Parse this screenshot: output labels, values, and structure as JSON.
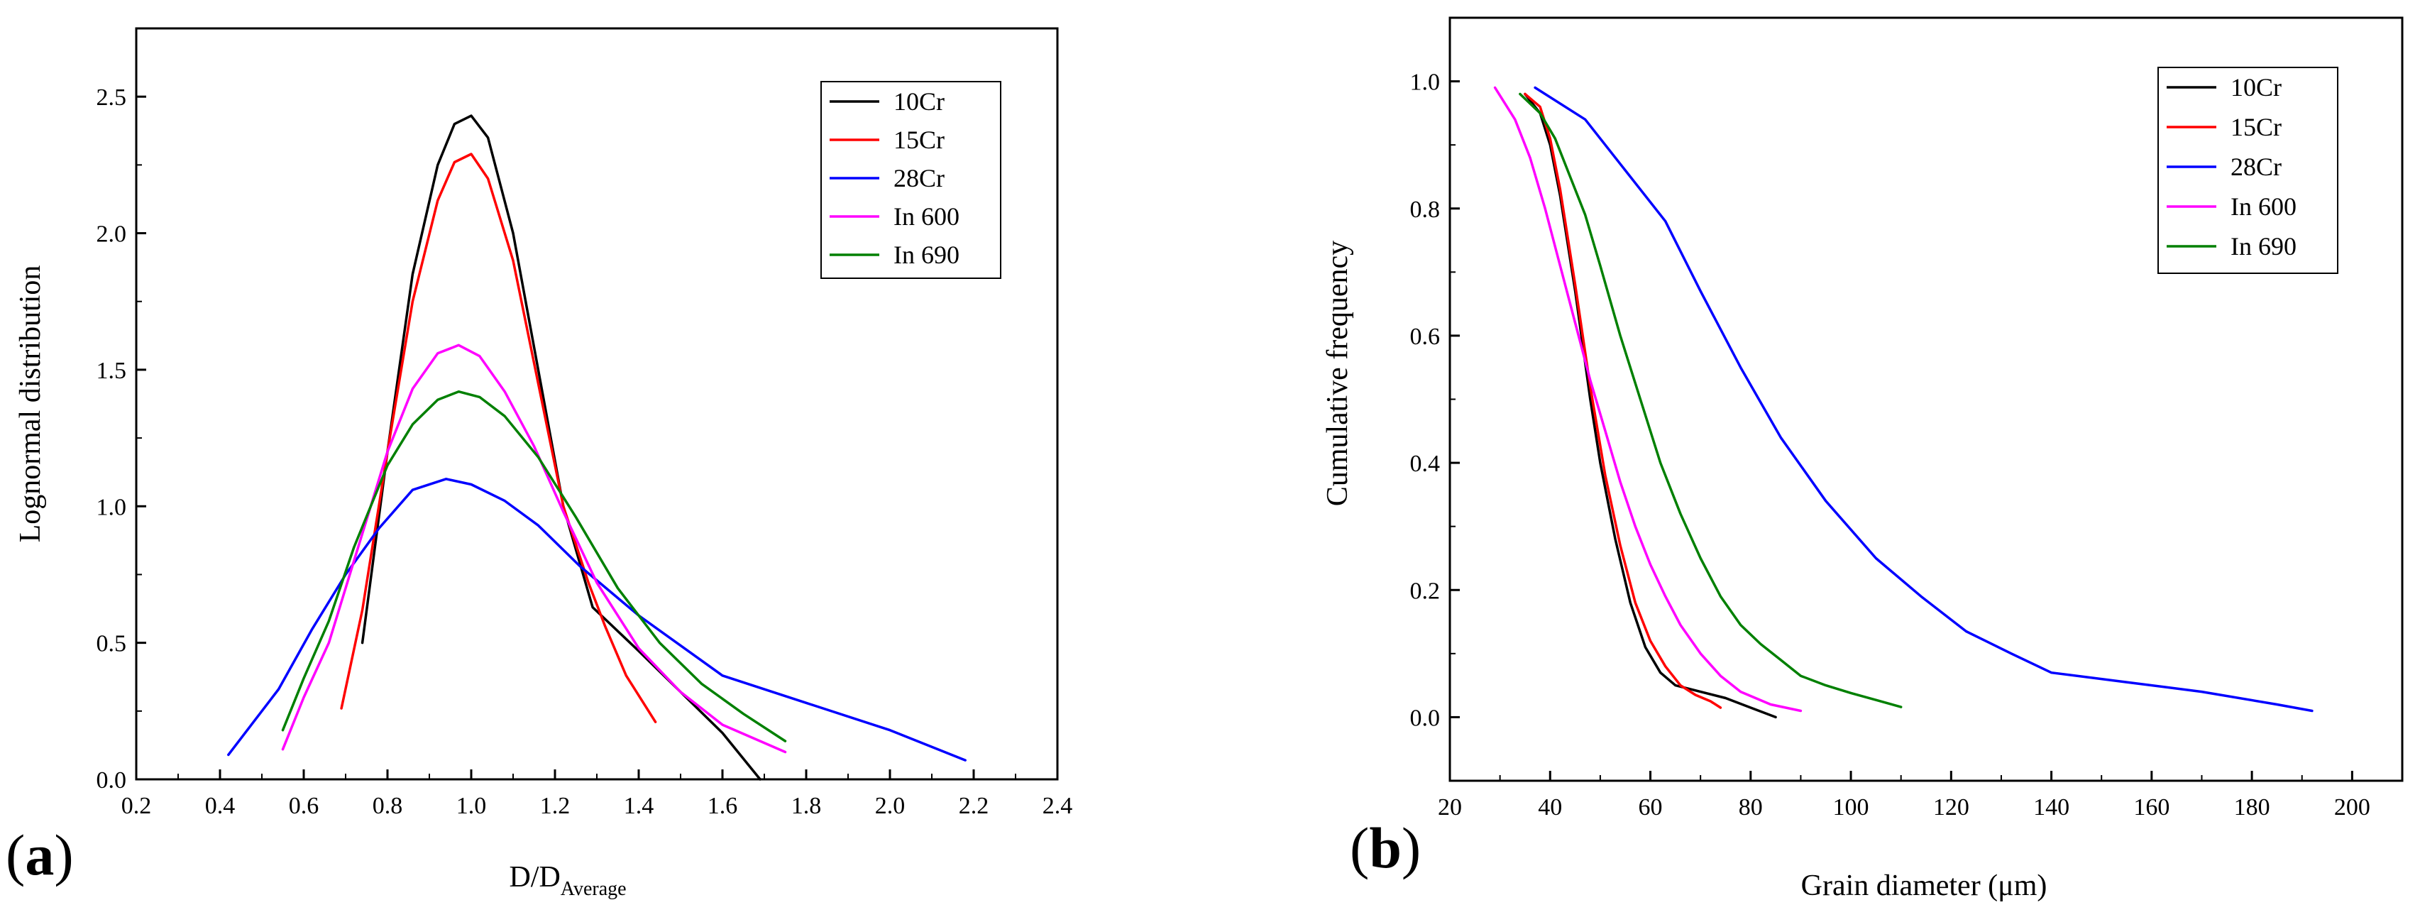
{
  "chart_data": [
    {
      "type": "line",
      "panel_label": "(a)",
      "xlabel": "D/D",
      "xlabel_sub": "Average",
      "ylabel": "Lognormal distribution",
      "xlim": [
        0.2,
        2.4
      ],
      "ylim": [
        0.0,
        2.75
      ],
      "xticks": [
        "0.2",
        "0.4",
        "0.6",
        "0.8",
        "1.0",
        "1.2",
        "1.4",
        "1.6",
        "1.8",
        "2.0",
        "2.2",
        "2.4"
      ],
      "yticks": [
        "0.0",
        "0.5",
        "1.0",
        "1.5",
        "2.0",
        "2.5"
      ],
      "legend_position": "top-right",
      "series": [
        {
          "name": "10Cr",
          "color": "#000000",
          "x": [
            0.74,
            0.8,
            0.86,
            0.92,
            0.96,
            1.0,
            1.04,
            1.1,
            1.16,
            1.22,
            1.29,
            1.4,
            1.5,
            1.6,
            1.69
          ],
          "y": [
            0.5,
            1.2,
            1.85,
            2.25,
            2.4,
            2.43,
            2.35,
            2.0,
            1.5,
            1.0,
            0.63,
            0.47,
            0.32,
            0.17,
            0.0
          ]
        },
        {
          "name": "15Cr",
          "color": "#ff0000",
          "x": [
            0.69,
            0.74,
            0.8,
            0.86,
            0.92,
            0.96,
            1.0,
            1.04,
            1.1,
            1.16,
            1.22,
            1.28,
            1.32,
            1.37,
            1.44
          ],
          "y": [
            0.26,
            0.62,
            1.2,
            1.75,
            2.12,
            2.26,
            2.29,
            2.2,
            1.9,
            1.45,
            1.0,
            0.72,
            0.56,
            0.38,
            0.21
          ]
        },
        {
          "name": "28Cr",
          "color": "#0000ff",
          "x": [
            0.42,
            0.54,
            0.62,
            0.7,
            0.78,
            0.86,
            0.94,
            1.0,
            1.08,
            1.16,
            1.26,
            1.4,
            1.6,
            1.8,
            2.0,
            2.18
          ],
          "y": [
            0.09,
            0.33,
            0.55,
            0.75,
            0.92,
            1.06,
            1.1,
            1.08,
            1.02,
            0.93,
            0.78,
            0.6,
            0.38,
            0.28,
            0.18,
            0.07
          ]
        },
        {
          "name": "In 600",
          "color": "#ff00ff",
          "x": [
            0.55,
            0.6,
            0.66,
            0.72,
            0.8,
            0.86,
            0.92,
            0.97,
            1.02,
            1.08,
            1.15,
            1.22,
            1.3,
            1.4,
            1.5,
            1.6,
            1.75
          ],
          "y": [
            0.11,
            0.3,
            0.5,
            0.8,
            1.2,
            1.43,
            1.56,
            1.59,
            1.55,
            1.42,
            1.22,
            0.98,
            0.72,
            0.48,
            0.32,
            0.2,
            0.1
          ]
        },
        {
          "name": "In 690",
          "color": "#008000",
          "x": [
            0.55,
            0.6,
            0.66,
            0.72,
            0.8,
            0.86,
            0.92,
            0.97,
            1.02,
            1.08,
            1.16,
            1.25,
            1.35,
            1.45,
            1.55,
            1.65,
            1.75
          ],
          "y": [
            0.18,
            0.37,
            0.58,
            0.85,
            1.15,
            1.3,
            1.39,
            1.42,
            1.4,
            1.33,
            1.18,
            0.96,
            0.7,
            0.5,
            0.35,
            0.24,
            0.14
          ]
        }
      ]
    },
    {
      "type": "line",
      "panel_label": "(b)",
      "xlabel": "Grain diameter (μm)",
      "ylabel": "Cumulative frequency",
      "xlim": [
        20,
        210
      ],
      "ylim": [
        -0.1,
        1.1
      ],
      "xticks": [
        "20",
        "40",
        "60",
        "80",
        "100",
        "120",
        "140",
        "160",
        "180",
        "200"
      ],
      "yticks": [
        "0.0",
        "0.2",
        "0.4",
        "0.6",
        "0.8",
        "1.0"
      ],
      "legend_position": "top-right",
      "series": [
        {
          "name": "10Cr",
          "color": "#000000",
          "x": [
            35,
            38,
            40,
            42,
            45,
            48,
            50,
            53,
            56,
            59,
            62,
            65,
            70,
            75,
            80,
            85
          ],
          "y": [
            0.98,
            0.95,
            0.9,
            0.82,
            0.67,
            0.5,
            0.4,
            0.28,
            0.18,
            0.11,
            0.07,
            0.05,
            0.04,
            0.03,
            0.015,
            0.0
          ]
        },
        {
          "name": "15Cr",
          "color": "#ff0000",
          "x": [
            35,
            38,
            40,
            42,
            45,
            48,
            51,
            54,
            57,
            60,
            63,
            66,
            69,
            72,
            74
          ],
          "y": [
            0.98,
            0.96,
            0.91,
            0.83,
            0.68,
            0.52,
            0.38,
            0.27,
            0.18,
            0.12,
            0.08,
            0.05,
            0.035,
            0.025,
            0.015
          ]
        },
        {
          "name": "28Cr",
          "color": "#0000ff",
          "x": [
            37,
            47,
            55,
            63,
            70,
            78,
            86,
            95,
            105,
            114,
            123,
            132,
            140,
            155,
            170,
            185,
            192
          ],
          "y": [
            0.99,
            0.94,
            0.86,
            0.78,
            0.67,
            0.55,
            0.44,
            0.34,
            0.25,
            0.19,
            0.135,
            0.1,
            0.07,
            0.055,
            0.04,
            0.02,
            0.01
          ]
        },
        {
          "name": "In 600",
          "color": "#ff00ff",
          "x": [
            29,
            33,
            36,
            39,
            42,
            45,
            48,
            51,
            54,
            57,
            60,
            63,
            66,
            70,
            74,
            78,
            84,
            90
          ],
          "y": [
            0.99,
            0.94,
            0.88,
            0.8,
            0.71,
            0.62,
            0.53,
            0.45,
            0.37,
            0.3,
            0.24,
            0.19,
            0.145,
            0.1,
            0.065,
            0.04,
            0.02,
            0.01
          ]
        },
        {
          "name": "In 690",
          "color": "#008000",
          "x": [
            34,
            38,
            41,
            44,
            47,
            50,
            54,
            58,
            62,
            66,
            70,
            74,
            78,
            82,
            86,
            90,
            95,
            100,
            105,
            110
          ],
          "y": [
            0.98,
            0.95,
            0.91,
            0.85,
            0.79,
            0.71,
            0.6,
            0.5,
            0.4,
            0.32,
            0.25,
            0.19,
            0.145,
            0.115,
            0.09,
            0.065,
            0.05,
            0.038,
            0.027,
            0.016
          ]
        }
      ]
    }
  ]
}
